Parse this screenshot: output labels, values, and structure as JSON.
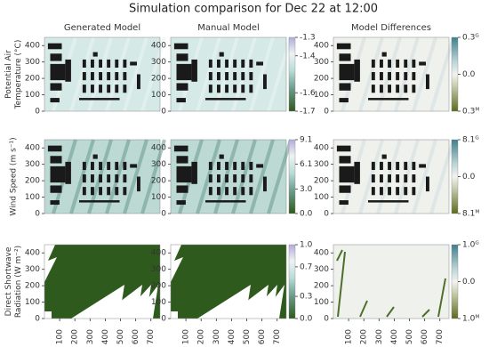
{
  "title": "Simulation comparison for Dec 22 at 12:00",
  "columns": [
    "Generated Model",
    "Manual Model",
    "Model Differences"
  ],
  "xlim": [
    0,
    760
  ],
  "xticks": [
    100,
    200,
    300,
    400,
    500,
    600,
    700
  ],
  "ylim": [
    0,
    450
  ],
  "yticks": [
    0,
    100,
    200,
    300,
    400
  ],
  "rows": [
    {
      "label": [
        "Potential Air",
        "Temperature (°C)"
      ],
      "colorbar": {
        "lim": [
          -1.7,
          -1.3
        ],
        "ticks": [
          -1.7,
          -1.6,
          -1.4,
          -1.3
        ]
      },
      "diff_colorbar": {
        "lim": [
          -0.3,
          0.3
        ],
        "ticks": [
          {
            "value": 0.3,
            "label": "0.3ᴳ"
          },
          {
            "value": 0,
            "label": "0.0"
          },
          {
            "value": -0.3,
            "label": "0.3ᴹ"
          }
        ]
      }
    },
    {
      "label": [
        "Wind Speed (m s⁻¹)"
      ],
      "colorbar": {
        "lim": [
          0,
          9.1
        ],
        "ticks": [
          9.1,
          6.1,
          {
            "value": 3,
            "label": "3.0"
          },
          {
            "value": 0,
            "label": "0.0"
          }
        ]
      },
      "diff_colorbar": {
        "lim": [
          -8.1,
          8.1
        ],
        "ticks": [
          {
            "value": 8.1,
            "label": "8.1ᴳ"
          },
          {
            "value": 0,
            "label": "0.0"
          },
          {
            "value": -8.1,
            "label": "8.1ᴹ"
          }
        ]
      }
    },
    {
      "label": [
        "Direct Shortwave",
        "Radiation (W m⁻²)"
      ],
      "colorbar": {
        "lim": [
          0,
          1
        ],
        "ticks": [
          {
            "value": 1,
            "label": "1.0"
          },
          0.7,
          0.3,
          {
            "value": 0,
            "label": "0.0"
          }
        ]
      },
      "diff_colorbar": {
        "lim": [
          -1,
          1
        ],
        "ticks": [
          {
            "value": 1,
            "label": "1.0ᴳ"
          },
          {
            "value": 0,
            "label": "0.0"
          },
          {
            "value": -1,
            "label": "1.0ᴹ"
          }
        ]
      }
    }
  ]
}
